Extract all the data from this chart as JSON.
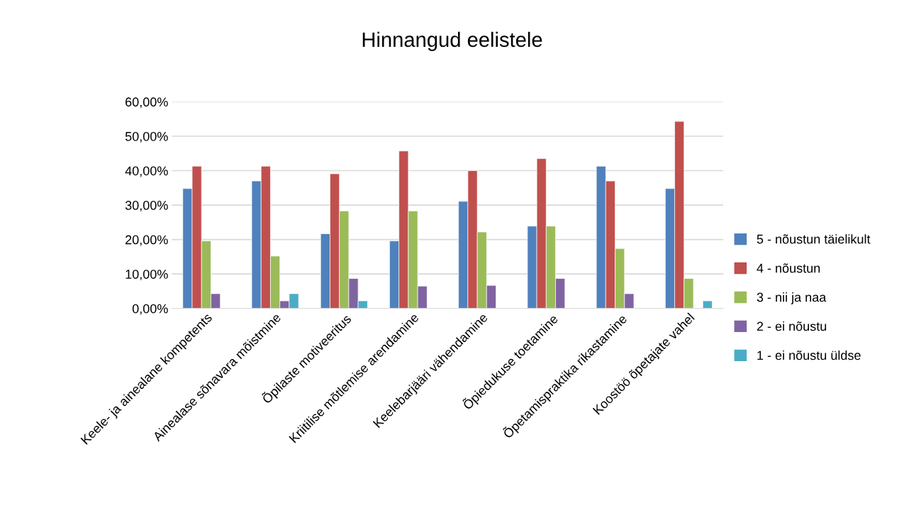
{
  "chart_data": {
    "type": "bar",
    "title": "Hinnangud eelistele",
    "categories": [
      "Keele- ja ainealane kompetents",
      "Ainealase sõnavara mõistmine",
      "Õpilaste motiveeritus",
      "Kriitilise mõtlemise arendamine",
      "Keelebarjääri vähendamine",
      "Õpiedukuse toetamine",
      "Õpetamispraktika rikastamine",
      "Koostöö õpetajate vahel"
    ],
    "series": [
      {
        "name": "5 - nõustun täielikult",
        "color": "#4f81bd",
        "values": [
          34.8,
          37.0,
          21.7,
          19.6,
          31.1,
          23.9,
          41.3,
          34.8
        ]
      },
      {
        "name": "4 - nõustun",
        "color": "#c0504d",
        "values": [
          41.3,
          41.3,
          39.1,
          45.7,
          40.0,
          43.5,
          37.0,
          54.3
        ]
      },
      {
        "name": "3 - nii ja naa",
        "color": "#9bbb59",
        "values": [
          19.6,
          15.2,
          28.3,
          28.3,
          22.2,
          23.9,
          17.4,
          8.7
        ]
      },
      {
        "name": "2 - ei nõustu",
        "color": "#8064a2",
        "values": [
          4.3,
          2.2,
          8.7,
          6.5,
          6.7,
          8.7,
          4.3,
          null
        ]
      },
      {
        "name": "1 - ei nõustu üldse",
        "color": "#4bacc6",
        "values": [
          null,
          4.3,
          2.2,
          null,
          null,
          null,
          null,
          2.2
        ]
      }
    ],
    "ylim": [
      0,
      60
    ],
    "yticks": [
      {
        "value": 0,
        "label": "0,00%"
      },
      {
        "value": 10,
        "label": "10,00%"
      },
      {
        "value": 20,
        "label": "20,00%"
      },
      {
        "value": 30,
        "label": "30,00%"
      },
      {
        "value": 40,
        "label": "40,00%"
      },
      {
        "value": 50,
        "label": "50,00%"
      },
      {
        "value": 60,
        "label": "60,00%"
      }
    ],
    "grid": "y",
    "legend": "right"
  }
}
